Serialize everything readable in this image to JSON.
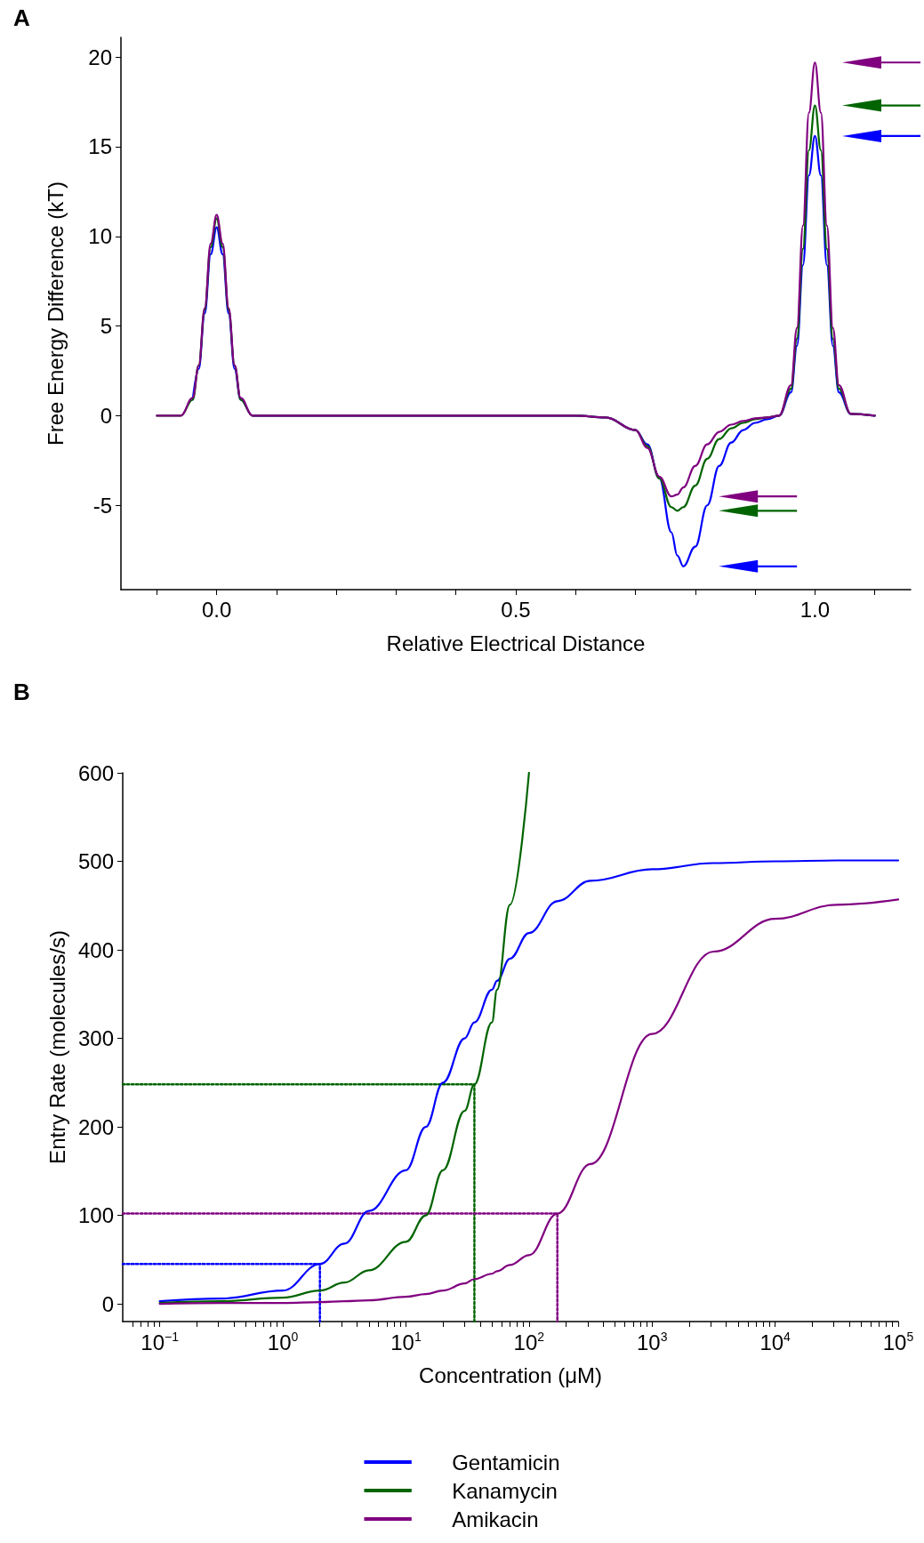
{
  "chart_data": [
    {
      "type": "line",
      "title": "A",
      "xlabel": "Relative Electrical Distance",
      "ylabel": "Free Energy Difference (kT)",
      "xlim": [
        -0.16,
        1.16
      ],
      "ylim": [
        -9.7,
        21.1
      ],
      "xticks": [
        {
          "value": -0.1,
          "label": null
        },
        {
          "value": 0,
          "label": "0.0"
        },
        {
          "value": 0.1,
          "label": null
        },
        {
          "value": 0.2,
          "label": null
        },
        {
          "value": 0.3,
          "label": null
        },
        {
          "value": 0.4,
          "label": null
        },
        {
          "value": 0.5,
          "label": "0.5"
        },
        {
          "value": 0.6,
          "label": null
        },
        {
          "value": 0.7,
          "label": null
        },
        {
          "value": 0.8,
          "label": null
        },
        {
          "value": 0.9,
          "label": null
        },
        {
          "value": 1,
          "label": "1.0"
        },
        {
          "value": 1.1,
          "label": null
        }
      ],
      "yticks": [
        -5,
        0,
        5,
        10,
        15,
        20
      ],
      "grid": false,
      "legend": false,
      "marker": "none",
      "line_style": "solid",
      "x": [
        -0.1,
        -0.06,
        -0.04,
        -0.03,
        -0.02,
        -0.01,
        0,
        0.01,
        0.02,
        0.03,
        0.04,
        0.06,
        0.1,
        0.3,
        0.5,
        0.6,
        0.65,
        0.7,
        0.72,
        0.74,
        0.76,
        0.77,
        0.78,
        0.8,
        0.82,
        0.84,
        0.86,
        0.88,
        0.9,
        0.92,
        0.94,
        0.96,
        0.97,
        0.98,
        0.99,
        1.0,
        1.01,
        1.02,
        1.03,
        1.04,
        1.06,
        1.1
      ],
      "series": [
        {
          "color": "#0000ff",
          "values": [
            null,
            null,
            0.9,
            2.6,
            5.7,
            9.0,
            10.5,
            9.0,
            5.7,
            2.6,
            0.9,
            0,
            0,
            0,
            0,
            0,
            -0.1,
            -0.8,
            -1.6,
            -3.5,
            -6.5,
            -7.8,
            -8.4,
            -7.3,
            -5.0,
            -2.8,
            -1.5,
            -0.8,
            -0.4,
            -0.2,
            0,
            1.3,
            3.9,
            8.4,
            13.4,
            15.6,
            13.4,
            8.4,
            3.9,
            1.3,
            0.1,
            0
          ]
        },
        {
          "color": "#006400",
          "values": [
            0,
            0,
            0.9,
            2.8,
            5.9,
            9.4,
            11.0,
            9.4,
            5.9,
            2.8,
            0.9,
            0,
            0,
            0,
            0,
            0,
            -0.1,
            -0.8,
            -1.7,
            -3.5,
            -5.1,
            -5.3,
            -5.1,
            -3.9,
            -2.4,
            -1.3,
            -0.7,
            -0.4,
            -0.2,
            -0.1,
            0,
            1.5,
            4.3,
            9.3,
            14.8,
            17.3,
            14.8,
            9.3,
            4.3,
            1.5,
            0.1,
            0
          ]
        },
        {
          "color": "#800080",
          "values": [
            0,
            0,
            1.0,
            2.8,
            6.0,
            9.6,
            11.2,
            9.6,
            6.0,
            2.8,
            1.0,
            0,
            0,
            0,
            0,
            0,
            -0.1,
            -0.8,
            -1.8,
            -3.4,
            -4.5,
            -4.4,
            -4.0,
            -2.8,
            -1.6,
            -0.9,
            -0.5,
            -0.3,
            -0.15,
            -0.1,
            0,
            1.7,
            4.9,
            10.6,
            16.9,
            19.7,
            16.9,
            10.6,
            4.9,
            1.7,
            0.1,
            0
          ]
        }
      ]
    },
    {
      "type": "line",
      "title": "B",
      "xlabel": "Concentration (μM)",
      "ylabel": "Entry Rate (molecules/s)",
      "log": "x",
      "xlim": [
        0.05,
        100000
      ],
      "ylim": [
        -20,
        600
      ],
      "xticks": [
        {
          "value": 0.06,
          "label": null
        },
        {
          "value": 0.07,
          "label": null
        },
        {
          "value": 0.08,
          "label": null
        },
        {
          "value": 0.09,
          "label": null
        },
        {
          "value": 0.1,
          "label": "10$^{−1}$"
        },
        {
          "value": 0.2,
          "label": null
        },
        {
          "value": 0.3,
          "label": null
        },
        {
          "value": 0.4,
          "label": null
        },
        {
          "value": 0.5,
          "label": null
        },
        {
          "value": 0.6,
          "label": null
        },
        {
          "value": 0.7,
          "label": null
        },
        {
          "value": 0.8,
          "label": null
        },
        {
          "value": 0.9,
          "label": null
        },
        {
          "value": 1,
          "label": "10$^{0}$"
        },
        {
          "value": 2,
          "label": null
        },
        {
          "value": 3,
          "label": null
        },
        {
          "value": 4,
          "label": null
        },
        {
          "value": 5,
          "label": null
        },
        {
          "value": 6,
          "label": null
        },
        {
          "value": 7,
          "label": null
        },
        {
          "value": 8,
          "label": null
        },
        {
          "value": 9,
          "label": null
        },
        {
          "value": 10,
          "label": "10$^{1}$"
        },
        {
          "value": 20,
          "label": null
        },
        {
          "value": 30,
          "label": null
        },
        {
          "value": 40,
          "label": null
        },
        {
          "value": 50,
          "label": null
        },
        {
          "value": 60,
          "label": null
        },
        {
          "value": 70,
          "label": null
        },
        {
          "value": 80,
          "label": null
        },
        {
          "value": 90,
          "label": null
        },
        {
          "value": 100,
          "label": "10$^{2}$"
        },
        {
          "value": 200,
          "label": null
        },
        {
          "value": 300,
          "label": null
        },
        {
          "value": 400,
          "label": null
        },
        {
          "value": 500,
          "label": null
        },
        {
          "value": 600,
          "label": null
        },
        {
          "value": 700,
          "label": null
        },
        {
          "value": 800,
          "label": null
        },
        {
          "value": 900,
          "label": null
        },
        {
          "value": 1000,
          "label": "10$^{3}$"
        },
        {
          "value": 2000,
          "label": null
        },
        {
          "value": 3000,
          "label": null
        },
        {
          "value": 4000,
          "label": null
        },
        {
          "value": 5000,
          "label": null
        },
        {
          "value": 6000,
          "label": null
        },
        {
          "value": 7000,
          "label": null
        },
        {
          "value": 8000,
          "label": null
        },
        {
          "value": 9000,
          "label": null
        },
        {
          "value": 10000,
          "label": "10$^{4}$"
        },
        {
          "value": 20000,
          "label": null
        },
        {
          "value": 30000,
          "label": null
        },
        {
          "value": 40000,
          "label": null
        },
        {
          "value": 50000,
          "label": null
        },
        {
          "value": 60000,
          "label": null
        },
        {
          "value": 70000,
          "label": null
        },
        {
          "value": 80000,
          "label": null
        },
        {
          "value": 90000,
          "label": null
        },
        {
          "value": 100000,
          "label": "10$^{5}$"
        }
      ],
      "yticks": [
        0,
        100,
        200,
        300,
        400,
        500,
        600
      ],
      "grid": false,
      "legend": "bottom",
      "marker": "none",
      "line_style": "solid",
      "x": [
        0.1,
        0.316,
        1,
        2,
        3.16,
        5,
        10,
        14.5,
        20,
        30,
        36,
        50,
        55,
        70,
        100,
        170,
        316,
        1000,
        3160,
        10000,
        31600,
        100000
      ],
      "series": [
        {
          "name": "Gentamicin",
          "color": "#0000ff",
          "values": [
            3,
            6,
            15,
            45,
            68,
            105,
            151,
            200,
            250,
            300,
            318,
            355,
            365,
            390,
            419,
            455,
            478,
            491,
            498,
            500,
            501,
            501
          ]
        },
        {
          "name": "Kanamycin",
          "color": "#006400",
          "values": [
            1,
            3,
            7,
            15,
            24,
            38,
            70,
            100,
            151,
            218,
            248,
            318,
            355,
            451,
            600,
            null,
            null,
            null,
            null,
            null,
            null,
            null
          ]
        },
        {
          "name": "Amikacin",
          "color": "#800080",
          "values": [
            0,
            1,
            1,
            2,
            3,
            4,
            8,
            11,
            15,
            23,
            28,
            34,
            37,
            44,
            55,
            102,
            158,
            305,
            398,
            435,
            451,
            457
          ]
        },
        {
          "color": "#0000ff",
          "line_style": "dotted",
          "x": [
            0.05,
            2,
            2
          ],
          "values": [
            45,
            45,
            -20
          ]
        },
        {
          "color": "#006400",
          "line_style": "dotted",
          "x": [
            0.05,
            36,
            36
          ],
          "values": [
            248,
            248,
            -20
          ]
        },
        {
          "color": "#800080",
          "line_style": "dotted",
          "x": [
            0.05,
            170,
            170
          ],
          "values": [
            102,
            102,
            -20
          ]
        }
      ]
    }
  ]
}
